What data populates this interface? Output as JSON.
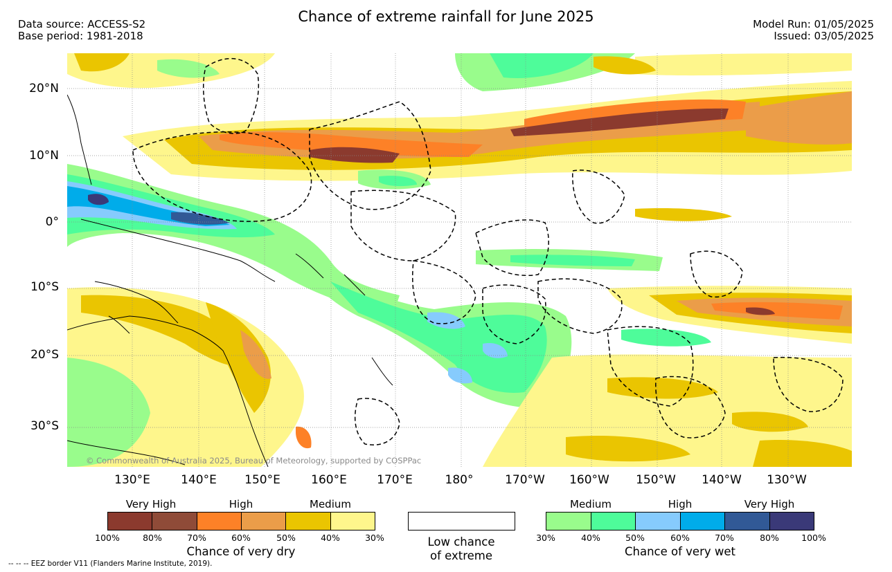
{
  "header": {
    "title": "Chance of extreme rainfall for June 2025",
    "data_source": "Data source: ACCESS-S2",
    "base_period": "Base period: 1981-2018",
    "model_run": "Model Run: 01/05/2025",
    "issued": "Issued: 03/05/2025"
  },
  "map": {
    "copyright": "© Commonwealth of Australia 2025, Bureau of Meteorology, supported by COSPPac",
    "lat_labels": [
      "20°N",
      "10°N",
      "0°",
      "10°S",
      "20°S",
      "30°S"
    ],
    "lon_labels": [
      "130°E",
      "140°E",
      "150°E",
      "160°E",
      "170°E",
      "180°",
      "170°W",
      "160°W",
      "150°W",
      "140°W",
      "130°W"
    ]
  },
  "legend_dry": {
    "title": "Chance of very dry",
    "headers": [
      "Very High",
      "High",
      "Medium"
    ],
    "ticks": [
      "100%",
      "80%",
      "70%",
      "60%",
      "50%",
      "40%",
      "30%"
    ],
    "colors": [
      "#8b3a2e",
      "#8f4b38",
      "#fd8127",
      "#eb9d49",
      "#eac501",
      "#fef68c"
    ]
  },
  "legend_low": {
    "line1": "Low chance",
    "line2": "of extreme"
  },
  "legend_wet": {
    "title": "Chance of very wet",
    "headers": [
      "Medium",
      "High",
      "Very High"
    ],
    "ticks": [
      "30%",
      "40%",
      "50%",
      "60%",
      "70%",
      "80%",
      "100%"
    ],
    "colors": [
      "#99fc8c",
      "#4efc9a",
      "#86cbfd",
      "#00acea",
      "#315996",
      "#3a3978"
    ]
  },
  "footer": {
    "eez_note": "--  --  -- EEZ border V11 (Flanders Marine Institute, 2019)."
  }
}
